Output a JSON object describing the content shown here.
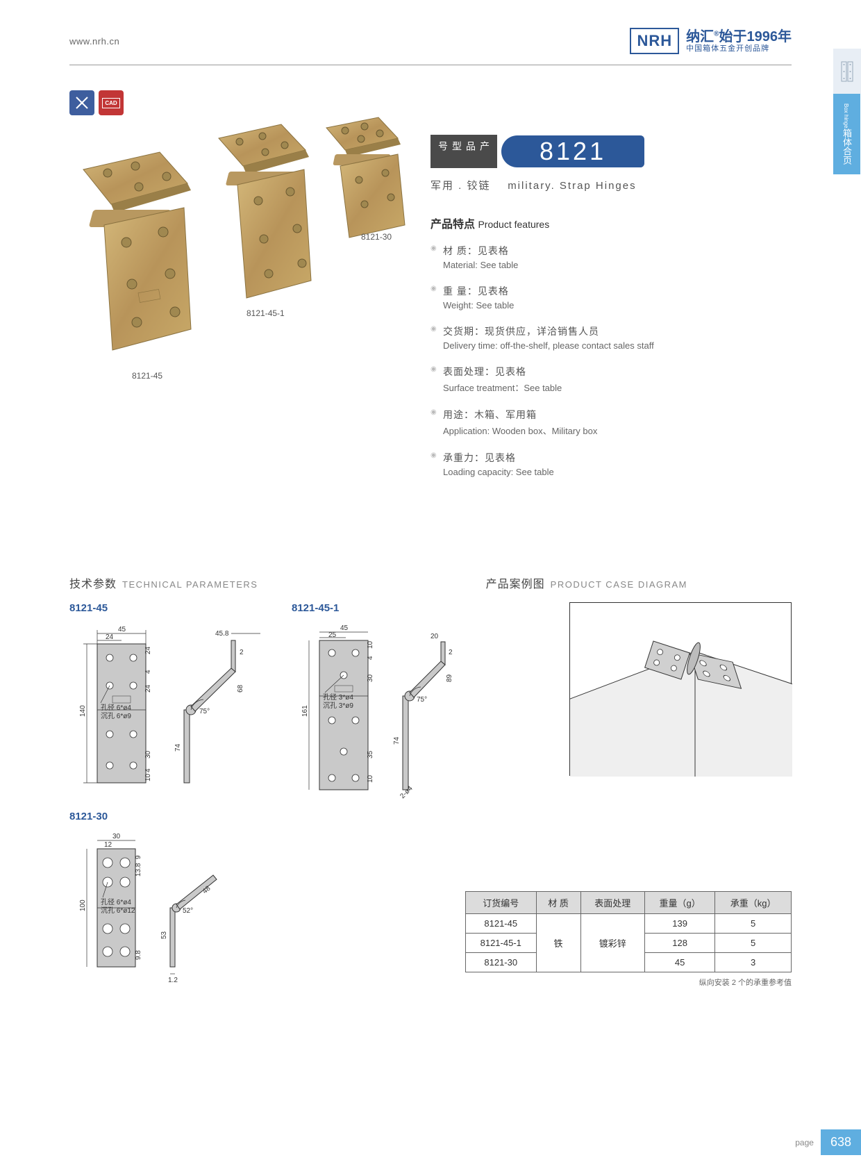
{
  "header": {
    "url": "www.nrh.cn",
    "logo": "NRH",
    "brand_cn": "纳汇",
    "since": "始于1996年",
    "tagline": "中国箱体五金开创品牌",
    "reg": "®"
  },
  "side_tab": {
    "cn": "箱体合页",
    "en": "Box hinge"
  },
  "badges": {
    "blue_icon": "✕✕",
    "red_label": "CAD"
  },
  "model": {
    "label": "产品型号",
    "number": "8121"
  },
  "subtitle": {
    "cn": "军用 . 铰链",
    "en": "military. Strap Hinges"
  },
  "features_title": {
    "cn": "产品特点",
    "en": "Product features"
  },
  "features": [
    {
      "cn": "材  质：见表格",
      "en": "Material: See table"
    },
    {
      "cn": "重  量：见表格",
      "en": "Weight: See table"
    },
    {
      "cn": "交货期：现货供应，详洽销售人员",
      "en": "Delivery time: off-the-shelf, please contact sales staff"
    },
    {
      "cn": "表面处理：见表格",
      "en": "Surface treatment：See table"
    },
    {
      "cn": "用途：木箱、军用箱",
      "en": "Application: Wooden box、Military box"
    },
    {
      "cn": "承重力：见表格",
      "en": "Loading capacity: See table"
    }
  ],
  "photo_labels": {
    "a": "8121-45",
    "b": "8121-45-1",
    "c": "8121-30"
  },
  "tech_title": {
    "cn": "技术参数",
    "en": "TECHNICAL PARAMETERS"
  },
  "case_title": {
    "cn": "产品案例图",
    "en": "PRODUCT CASE DIAGRAM"
  },
  "drawings": {
    "d1": {
      "label": "8121-45",
      "w": "45",
      "w2": "24",
      "t1": "24",
      "t2": "4",
      "t3": "24",
      "h": "140",
      "b1": "30",
      "b2": "4",
      "b3": "10",
      "hole_cn": "孔径 6*ø4",
      "sink_cn": "沉孔 6*ø9",
      "side_top": "45.8",
      "side_t": "2",
      "side_h": "68",
      "side_b": "74",
      "angle": "75°"
    },
    "d2": {
      "label": "8121-45-1",
      "w": "45",
      "w2": "25",
      "t1": "10",
      "t2": "4",
      "t3": "30",
      "h": "161",
      "b1": "35",
      "b2": "10",
      "hole_cn": "孔径 3*ø4",
      "sink_cn": "沉孔 3*ø9",
      "side_top": "20",
      "side_t": "2",
      "side_h": "89",
      "side_b": "74",
      "angle": "75°",
      "note": "2-ø4"
    },
    "d3": {
      "label": "8121-30",
      "w": "30",
      "w2": "12",
      "t1": "9",
      "t2": "13.8",
      "h": "100",
      "b1": "9.8",
      "hole_cn": "孔径 6*ø4",
      "sink_cn": "沉孔 6*ø12",
      "side_h": "48",
      "side_b": "53",
      "side_t": "1.2",
      "angle": "52°"
    }
  },
  "spec_table": {
    "headers": [
      "订货编号",
      "材  质",
      "表面处理",
      "重量（g）",
      "承重（kg）"
    ],
    "material": "铁",
    "surface": "镀彩锌",
    "rows": [
      {
        "code": "8121-45",
        "weight": "139",
        "load": "5"
      },
      {
        "code": "8121-45-1",
        "weight": "128",
        "load": "5"
      },
      {
        "code": "8121-30",
        "weight": "45",
        "load": "3"
      }
    ],
    "note": "纵向安装 2 个的承重参考值"
  },
  "footer": {
    "label": "page",
    "num": "638"
  },
  "colors": {
    "brand": "#2c5899",
    "tab": "#5faee0",
    "badge_blue": "#3e5e9e",
    "badge_red": "#c23636",
    "hinge_body": "#c8a968",
    "hinge_shine": "#d4b87a"
  }
}
